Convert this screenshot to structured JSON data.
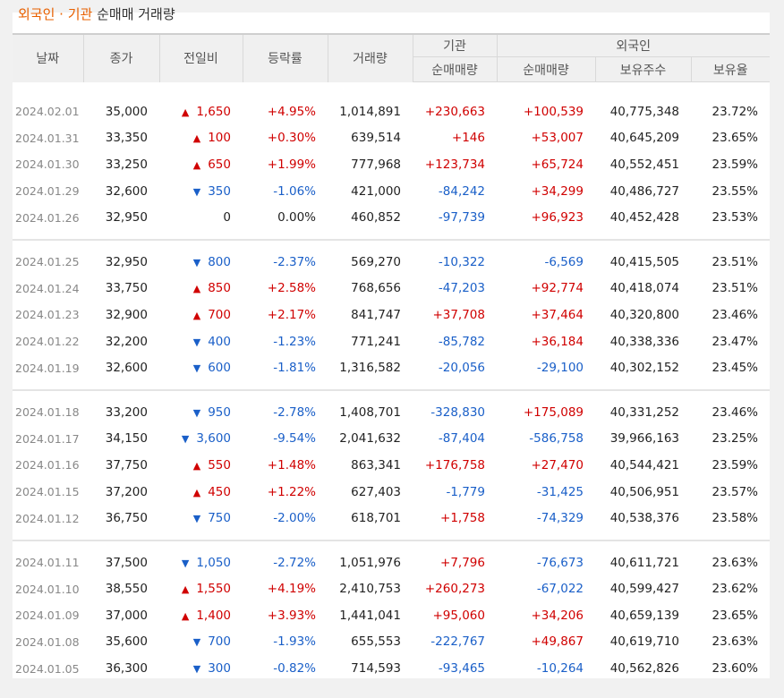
{
  "title": {
    "part1": "외국인 · 기관",
    "part2": "순매매 거래량"
  },
  "headers": {
    "date": "날짜",
    "close": "종가",
    "change": "전일비",
    "rate": "등락률",
    "volume": "거래량",
    "inst_group": "기관",
    "inst_net": "순매매량",
    "foreign_group": "외국인",
    "foreign_net": "순매매량",
    "foreign_hold": "보유주수",
    "foreign_ratio": "보유율"
  },
  "symbols": {
    "up": "▲",
    "down": "▼"
  },
  "colors": {
    "accent": "#e86000",
    "up": "#d00000",
    "down": "#1a5fc8",
    "header_bg": "#f0f0f0"
  },
  "groups": [
    [
      {
        "date": "2024.02.01",
        "close": "35,000",
        "dir": "up",
        "change": "1,650",
        "rate": "+4.95%",
        "volume": "1,014,891",
        "inst": "+230,663",
        "foreign": "+100,539",
        "hold": "40,775,348",
        "ratio": "23.72%"
      },
      {
        "date": "2024.01.31",
        "close": "33,350",
        "dir": "up",
        "change": "100",
        "rate": "+0.30%",
        "volume": "639,514",
        "inst": "+146",
        "foreign": "+53,007",
        "hold": "40,645,209",
        "ratio": "23.65%"
      },
      {
        "date": "2024.01.30",
        "close": "33,250",
        "dir": "up",
        "change": "650",
        "rate": "+1.99%",
        "volume": "777,968",
        "inst": "+123,734",
        "foreign": "+65,724",
        "hold": "40,552,451",
        "ratio": "23.59%"
      },
      {
        "date": "2024.01.29",
        "close": "32,600",
        "dir": "down",
        "change": "350",
        "rate": "-1.06%",
        "volume": "421,000",
        "inst": "-84,242",
        "foreign": "+34,299",
        "hold": "40,486,727",
        "ratio": "23.55%"
      },
      {
        "date": "2024.01.26",
        "close": "32,950",
        "dir": "flat",
        "change": "0",
        "rate": "0.00%",
        "volume": "460,852",
        "inst": "-97,739",
        "foreign": "+96,923",
        "hold": "40,452,428",
        "ratio": "23.53%"
      }
    ],
    [
      {
        "date": "2024.01.25",
        "close": "32,950",
        "dir": "down",
        "change": "800",
        "rate": "-2.37%",
        "volume": "569,270",
        "inst": "-10,322",
        "foreign": "-6,569",
        "hold": "40,415,505",
        "ratio": "23.51%"
      },
      {
        "date": "2024.01.24",
        "close": "33,750",
        "dir": "up",
        "change": "850",
        "rate": "+2.58%",
        "volume": "768,656",
        "inst": "-47,203",
        "foreign": "+92,774",
        "hold": "40,418,074",
        "ratio": "23.51%"
      },
      {
        "date": "2024.01.23",
        "close": "32,900",
        "dir": "up",
        "change": "700",
        "rate": "+2.17%",
        "volume": "841,747",
        "inst": "+37,708",
        "foreign": "+37,464",
        "hold": "40,320,800",
        "ratio": "23.46%"
      },
      {
        "date": "2024.01.22",
        "close": "32,200",
        "dir": "down",
        "change": "400",
        "rate": "-1.23%",
        "volume": "771,241",
        "inst": "-85,782",
        "foreign": "+36,184",
        "hold": "40,338,336",
        "ratio": "23.47%"
      },
      {
        "date": "2024.01.19",
        "close": "32,600",
        "dir": "down",
        "change": "600",
        "rate": "-1.81%",
        "volume": "1,316,582",
        "inst": "-20,056",
        "foreign": "-29,100",
        "hold": "40,302,152",
        "ratio": "23.45%"
      }
    ],
    [
      {
        "date": "2024.01.18",
        "close": "33,200",
        "dir": "down",
        "change": "950",
        "rate": "-2.78%",
        "volume": "1,408,701",
        "inst": "-328,830",
        "foreign": "+175,089",
        "hold": "40,331,252",
        "ratio": "23.46%"
      },
      {
        "date": "2024.01.17",
        "close": "34,150",
        "dir": "down",
        "change": "3,600",
        "rate": "-9.54%",
        "volume": "2,041,632",
        "inst": "-87,404",
        "foreign": "-586,758",
        "hold": "39,966,163",
        "ratio": "23.25%"
      },
      {
        "date": "2024.01.16",
        "close": "37,750",
        "dir": "up",
        "change": "550",
        "rate": "+1.48%",
        "volume": "863,341",
        "inst": "+176,758",
        "foreign": "+27,470",
        "hold": "40,544,421",
        "ratio": "23.59%"
      },
      {
        "date": "2024.01.15",
        "close": "37,200",
        "dir": "up",
        "change": "450",
        "rate": "+1.22%",
        "volume": "627,403",
        "inst": "-1,779",
        "foreign": "-31,425",
        "hold": "40,506,951",
        "ratio": "23.57%"
      },
      {
        "date": "2024.01.12",
        "close": "36,750",
        "dir": "down",
        "change": "750",
        "rate": "-2.00%",
        "volume": "618,701",
        "inst": "+1,758",
        "foreign": "-74,329",
        "hold": "40,538,376",
        "ratio": "23.58%"
      }
    ],
    [
      {
        "date": "2024.01.11",
        "close": "37,500",
        "dir": "down",
        "change": "1,050",
        "rate": "-2.72%",
        "volume": "1,051,976",
        "inst": "+7,796",
        "foreign": "-76,673",
        "hold": "40,611,721",
        "ratio": "23.63%"
      },
      {
        "date": "2024.01.10",
        "close": "38,550",
        "dir": "up",
        "change": "1,550",
        "rate": "+4.19%",
        "volume": "2,410,753",
        "inst": "+260,273",
        "foreign": "-67,022",
        "hold": "40,599,427",
        "ratio": "23.62%"
      },
      {
        "date": "2024.01.09",
        "close": "37,000",
        "dir": "up",
        "change": "1,400",
        "rate": "+3.93%",
        "volume": "1,441,041",
        "inst": "+95,060",
        "foreign": "+34,206",
        "hold": "40,659,139",
        "ratio": "23.65%"
      },
      {
        "date": "2024.01.08",
        "close": "35,600",
        "dir": "down",
        "change": "700",
        "rate": "-1.93%",
        "volume": "655,553",
        "inst": "-222,767",
        "foreign": "+49,867",
        "hold": "40,619,710",
        "ratio": "23.63%"
      },
      {
        "date": "2024.01.05",
        "close": "36,300",
        "dir": "down",
        "change": "300",
        "rate": "-0.82%",
        "volume": "714,593",
        "inst": "-93,465",
        "foreign": "-10,264",
        "hold": "40,562,826",
        "ratio": "23.60%"
      }
    ]
  ]
}
